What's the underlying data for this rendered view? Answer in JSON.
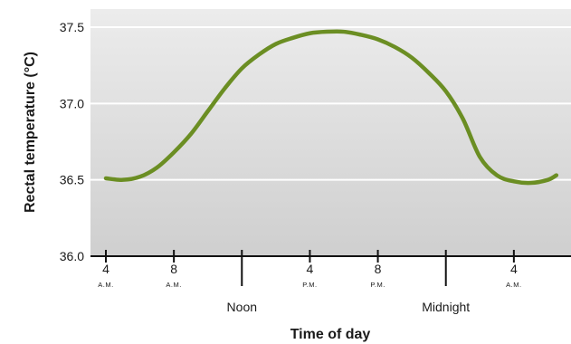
{
  "chart_data": {
    "type": "line",
    "title": "",
    "xlabel": "Time of day",
    "ylabel": "Rectal temperature (°C)",
    "ylim": [
      36.0,
      37.5
    ],
    "xlim": [
      2,
      30.5
    ],
    "y_ticks": [
      "36.0",
      "36.5",
      "37.0",
      "37.5"
    ],
    "x_ticks": [
      {
        "x": 4,
        "main": "4",
        "sub": "A.M.",
        "major": false
      },
      {
        "x": 8,
        "main": "8",
        "sub": "A.M.",
        "major": false
      },
      {
        "x": 12,
        "main": "Noon",
        "sub": "",
        "major": true
      },
      {
        "x": 16,
        "main": "4",
        "sub": "P.M.",
        "major": false
      },
      {
        "x": 20,
        "main": "8",
        "sub": "P.M.",
        "major": false
      },
      {
        "x": 24,
        "main": "Midnight",
        "sub": "",
        "major": true
      },
      {
        "x": 28,
        "main": "4",
        "sub": "A.M.",
        "major": false
      }
    ],
    "grid": true,
    "series": [
      {
        "color": "#6b8e23",
        "x": [
          4.0,
          5.0,
          6.0,
          7.0,
          8.0,
          9.0,
          10.0,
          11.0,
          12.0,
          13.0,
          14.0,
          15.0,
          16.0,
          17.0,
          18.0,
          19.0,
          20.0,
          21.0,
          22.0,
          23.0,
          24.0,
          25.0,
          26.0,
          27.0,
          28.0,
          29.0,
          30.0,
          30.5
        ],
        "y": [
          36.51,
          36.5,
          36.52,
          36.58,
          36.68,
          36.8,
          36.95,
          37.1,
          37.23,
          37.32,
          37.39,
          37.43,
          37.46,
          37.47,
          37.47,
          37.45,
          37.42,
          37.37,
          37.3,
          37.2,
          37.08,
          36.9,
          36.65,
          36.53,
          36.49,
          36.48,
          36.5,
          36.53
        ]
      }
    ]
  }
}
